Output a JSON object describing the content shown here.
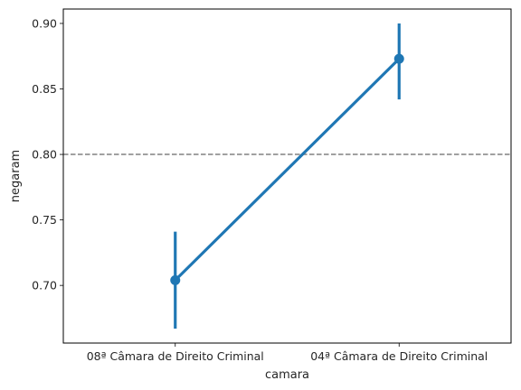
{
  "chart_data": {
    "type": "pointplot",
    "xlabel": "camara",
    "ylabel": "negaram",
    "categories": [
      "08ª Câmara de Direito Criminal",
      "04ª Câmara de Direito Criminal"
    ],
    "values": [
      0.704,
      0.873
    ],
    "ci_low": [
      0.667,
      0.842
    ],
    "ci_high": [
      0.741,
      0.9
    ],
    "reference_line": 0.8,
    "ylim": [
      0.656,
      0.911
    ],
    "yticks": [
      0.7,
      0.75,
      0.8,
      0.85,
      0.9
    ],
    "ytick_labels": [
      "0.70",
      "0.75",
      "0.80",
      "0.85",
      "0.90"
    ],
    "grid": false,
    "colors": {
      "series": "#1f77b4",
      "reference": "#808080",
      "axes": "#000000"
    }
  }
}
